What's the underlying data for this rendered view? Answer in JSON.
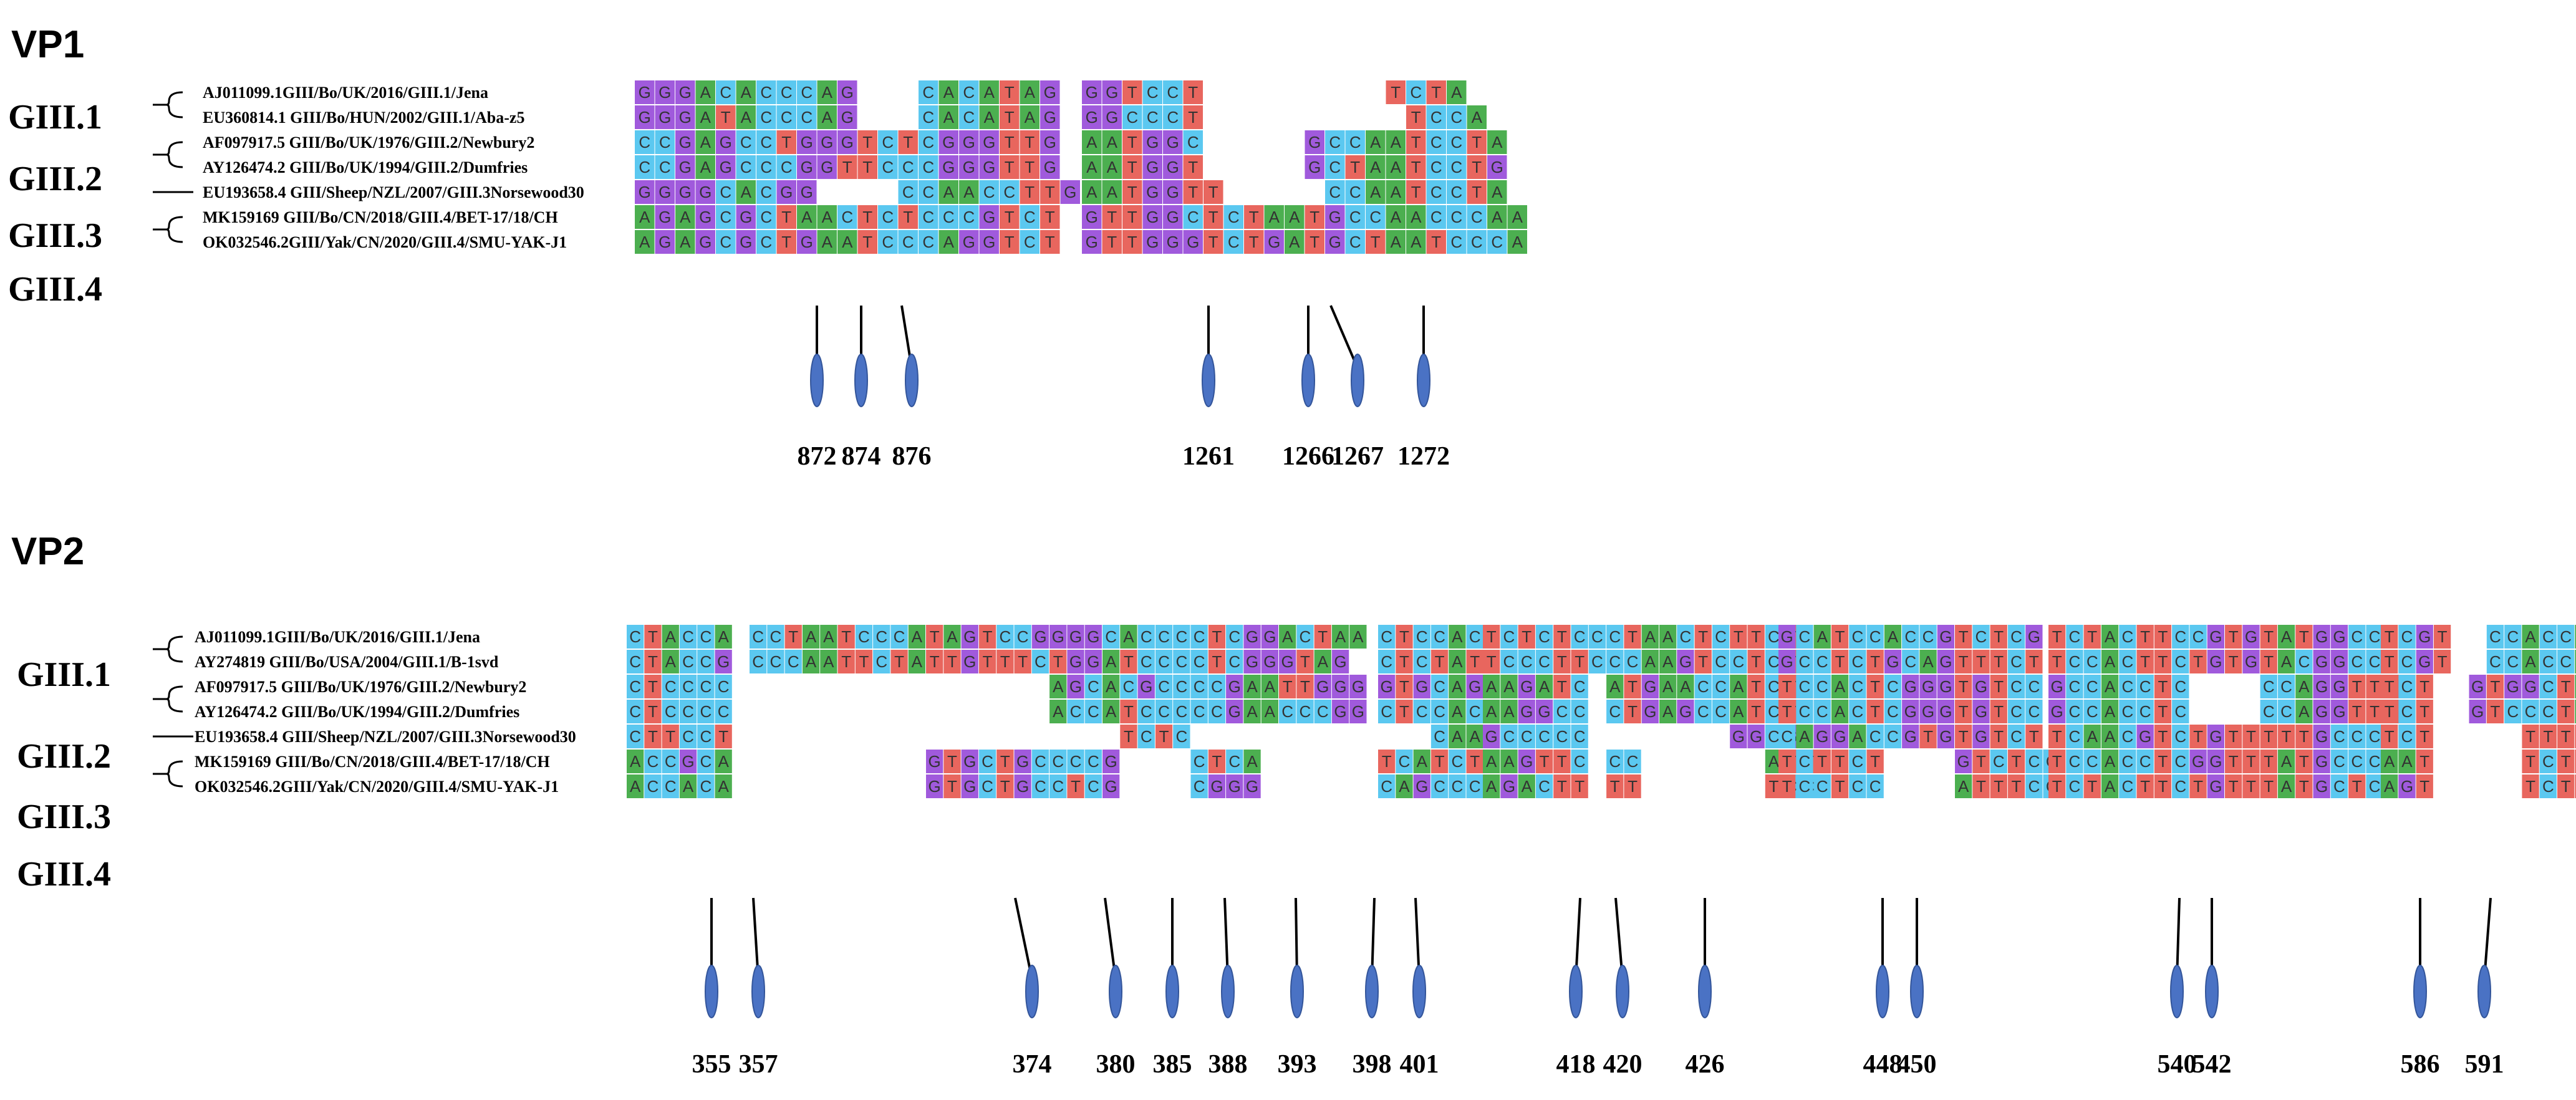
{
  "colors": {
    "A": "#4caf50",
    "C": "#5bc8f0",
    "G": "#a05adc",
    "T": "#e8665e"
  },
  "vp1": {
    "title": "VP1",
    "groups": [
      {
        "label": "GIII.1",
        "strains": [
          "AJ011099.1GIII/Bo/UK/2016/GIII.1/Jena",
          "EU360814.1 GIII/Bo/HUN/2002/GIII.1/Aba-z5"
        ]
      },
      {
        "label": "GIII.2",
        "strains": [
          "AF097917.5 GIII/Bo/UK/1976/GIII.2/Newbury2",
          "AY126474.2 GIII/Bo/UK/1994/GIII.2/Dumfries"
        ]
      },
      {
        "label": "GIII.3",
        "strains": [
          "EU193658.4 GIII/Sheep/NZL/2007/GIII.3Norsewood30"
        ]
      },
      {
        "label": "GIII.4",
        "strains": [
          "MK159169 GIII/Bo/CN/2018/GIII.4/BET-17/18/CH",
          "OK032546.2GIII/Yak/CN/2020/GIII.4/SMU-YAK-J1"
        ]
      }
    ],
    "blocks": [
      {
        "rows": [
          "GGGACACCCAG...CACATAG",
          "GGGATACCCAG...CACATAG",
          "CCGAGCCTGGGTCTCGGGTTG",
          "CCGAGCCCGGTTCCCGGGTTG",
          "GGGGCACGG....CCAACCTTG",
          "AGAGCGCTAACTCTCCCGTCT",
          "AGAGCGCTGAATCCCAGGTCT"
        ]
      },
      {
        "rows": [
          "GGTCCT.........TCTA",
          "GGCCCT..........TCCA",
          "AATGGC.....GCCAATCCTA",
          "AATGGT.....GCTAATCCTG",
          "AATGGTT.....CCAATCCTA",
          "GTTGGCTCTAATGCCAACCCAA",
          "GTTGGGTCTGATGCTAATCCCA"
        ]
      }
    ],
    "positions": [
      "872",
      "874",
      "876",
      "1261",
      "1266",
      "1267",
      "1272"
    ]
  },
  "vp2": {
    "title": "VP2",
    "groups": [
      {
        "label": "GIII.1",
        "strains": [
          "AJ011099.1GIII/Bo/UK/2016/GIII.1/Jena",
          "AY274819 GIII/Bo/USA/2004/GIII.1/B-1svd"
        ]
      },
      {
        "label": "GIII.2",
        "strains": [
          "AF097917.5 GIII/Bo/UK/1976/GIII.2/Newbury2",
          "AY126474.2 GIII/Bo/UK/1994/GIII.2/Dumfries"
        ]
      },
      {
        "label": "GIII.3",
        "strains": [
          "EU193658.4 GIII/Sheep/NZL/2007/GIII.3Norsewood30"
        ]
      },
      {
        "label": "GIII.4",
        "strains": [
          "MK159169 GIII/Bo/CN/2018/GIII.4/BET-17/18/CH",
          "OK032546.2GIII/Yak/CN/2020/GIII.4/SMU-YAK-J1"
        ]
      }
    ],
    "blocks": [
      {
        "rows": [
          "CTACCA",
          "CTACCG",
          "CTCCCC",
          "CTCCCC",
          "CTTCCT",
          "ACCGCA",
          "ACCACA"
        ]
      },
      {
        "rows": [
          "CCTAATCCCATAGTCCGGGGCACCCCTCGGACTAA",
          "CCCAATTCTATTGTTTCTGGATCCCCTCGGGTAG",
          ".................AGCACGCCCCGAATTGGG",
          ".................ACCATCCCCCGAACCCGG",
          ".....................TCTC",
          "..........GTGCTGCCCCG....CTCA",
          "..........GTGCTGCCTCG....CGGG"
        ]
      },
      {
        "rows": [
          "CTCCAC",
          "CTCTAT",
          "GTGCAG",
          "CTCCAC",
          "...CAA",
          "TCATCT",
          "CAGCCC"
        ]
      },
      {
        "rows": [
          "TCTCTCCCTAACTCTTCT",
          "TCCCTTCCCAAGTCCTCT",
          "AAGATC.ATGAACCATCT",
          "AAGGCC.CTGAGCCATCT",
          "GCCCCC........GGCG",
          "AAGTTC.CC.......ATT",
          "AGACTT.TT.......TCC"
        ]
      },
      {
        "rows": [
          "GCATCCACCGTCTCG",
          "GCCTCTGCAGTTTCT",
          "TCCACTCGGGTGTCC",
          "TCCACTCGGGTGTCC",
          "CAGGACCGTGTGTCT",
          "TCTTCT....GTCTCC",
          "TCCTCC....ATTTCC"
        ]
      },
      {
        "rows": [
          "TCTACTTCCGTGTATGGCC",
          "TCCACTTCTGTGTACGGCC",
          "GCCACCTC....CCAGGTTT",
          "GCCACCTC....CCAGGTTT",
          "TCAACGTCTGTTTTTGCCC",
          "TCCACCTCGGTTTATGCCC",
          "TCTACTTCTGTTTATGCTC"
        ]
      },
      {
        "rows": [
          "TCGT..CCACCAG",
          "TCGT..CCACCAG",
          "TCT..GTGGCTAG",
          "TCT..GTCCCTAG",
          "TCT.....TTTTC",
          "AAT.....TCTTC",
          "AGT.....TCTTC"
        ]
      }
    ],
    "positions": [
      "355",
      "357",
      "374",
      "380",
      "385",
      "388",
      "393",
      "398",
      "401",
      "418",
      "420",
      "426",
      "448",
      "450",
      "540",
      "542",
      "586",
      "591"
    ]
  }
}
